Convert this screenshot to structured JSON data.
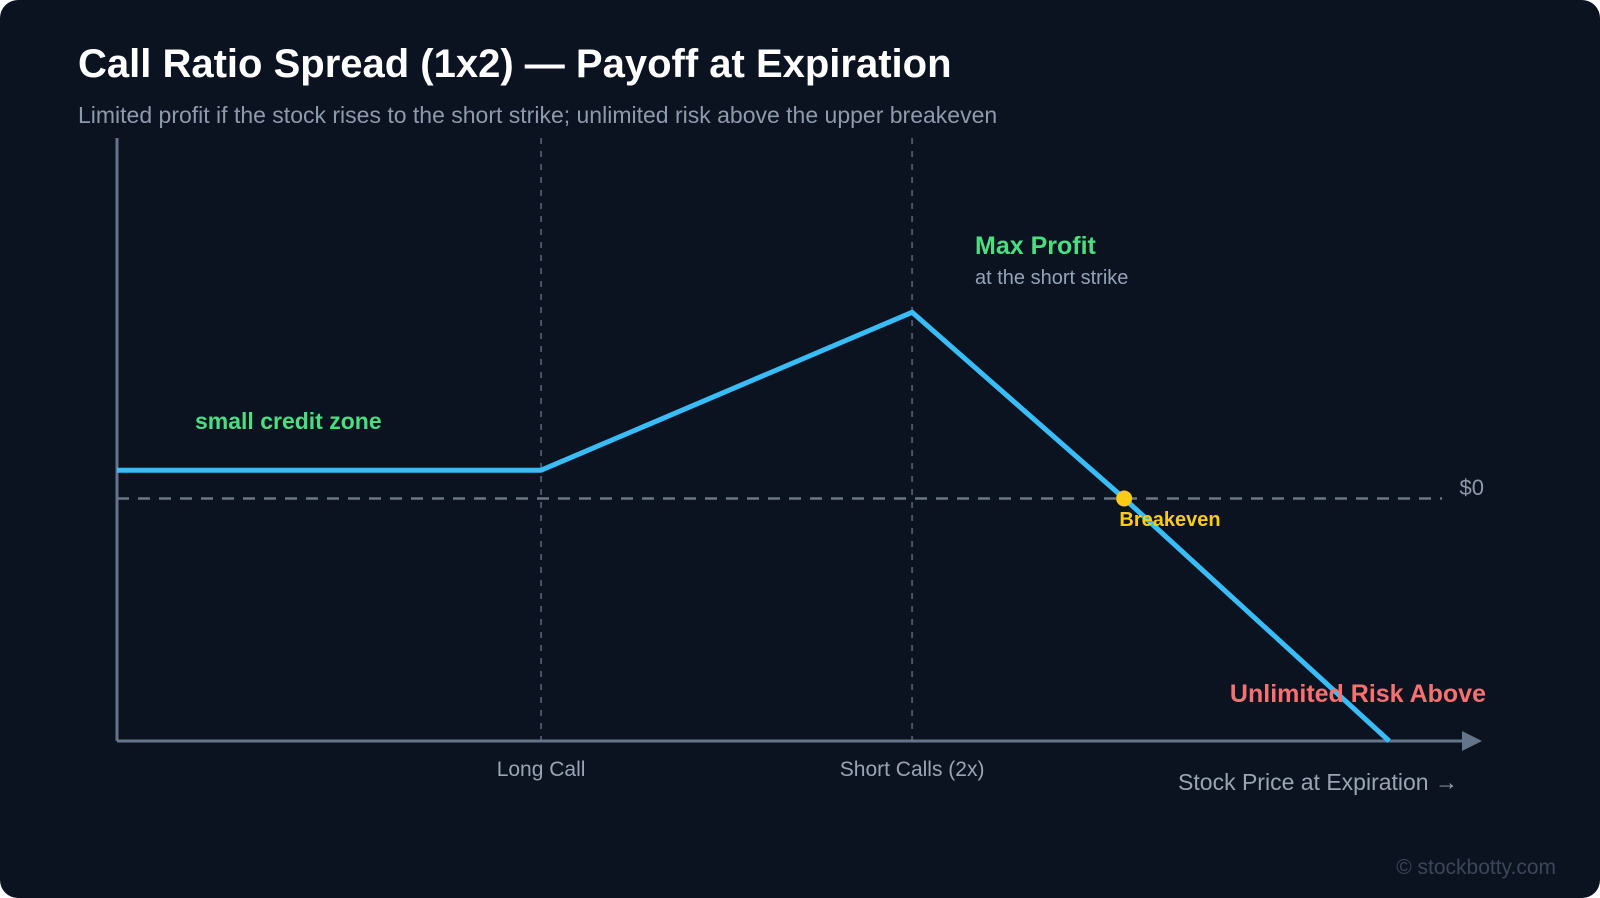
{
  "header": {
    "title": "Call Ratio Spread (1x2) — Payoff at Expiration",
    "subtitle": "Limited profit if the stock rises to the short strike; unlimited risk above the upper breakeven"
  },
  "chart_data": {
    "type": "line",
    "title": "Call Ratio Spread (1x2) — Payoff at Expiration",
    "subtitle": "Limited profit if the stock rises to the short strike; unlimited risk above the upper breakeven",
    "xlabel": "Stock Price at Expiration →",
    "ylabel": "",
    "x_ticks": [
      "Long Call",
      "Short Calls (2x)"
    ],
    "y_reference": {
      "label": "$0",
      "value": 0
    },
    "series": [
      {
        "color": "#38bdf8",
        "points": [
          {
            "x": 0,
            "y": 1
          },
          {
            "x": 40,
            "y": 1
          },
          {
            "x": 75,
            "y": 6.6
          },
          {
            "x": 95,
            "y": 0
          },
          {
            "x": 120,
            "y": -8.6
          }
        ]
      }
    ],
    "x_range": [
      0,
      128
    ],
    "y_range": [
      -8.6,
      12
    ],
    "grid": false,
    "annotations": [
      {
        "name": "small-credit-zone",
        "text": "small credit zone",
        "color": "#4ade80"
      },
      {
        "name": "max-profit",
        "text": "Max Profit",
        "subtext": "at the short strike",
        "color": "#4ade80"
      },
      {
        "name": "breakeven",
        "text": "Breakeven",
        "color": "#facc15",
        "x": 95,
        "y": 0
      },
      {
        "name": "unlimited-risk",
        "text": "Unlimited Risk Above",
        "color": "#f87171"
      }
    ]
  },
  "watermark": "© stockbotty.com",
  "colors": {
    "background": "#0b1320",
    "payoff_line": "#38bdf8",
    "profit": "#4ade80",
    "breakeven": "#facc15",
    "risk": "#f87171",
    "axis": "#64748b"
  }
}
